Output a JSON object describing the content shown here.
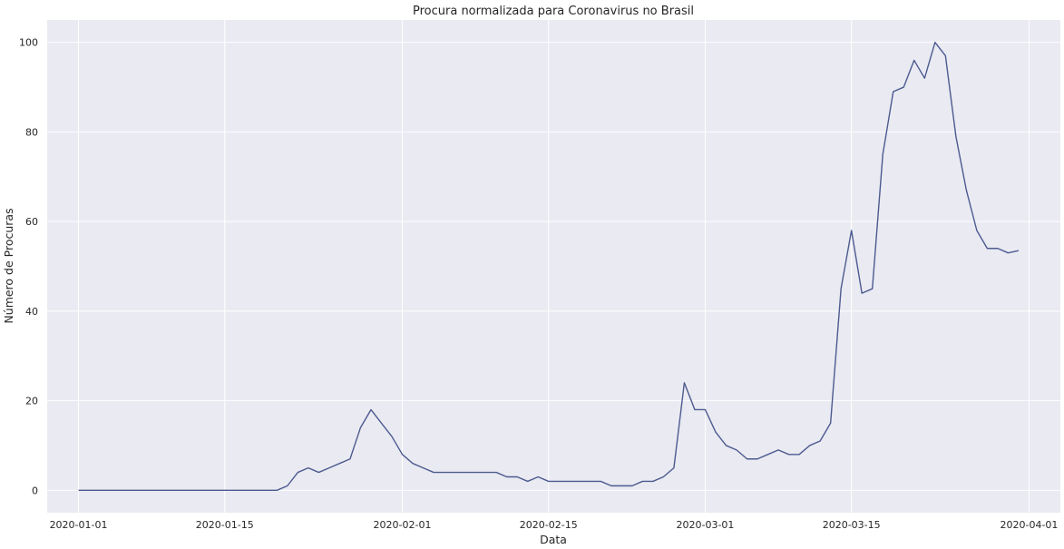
{
  "chart_data": {
    "type": "line",
    "title": "Procura normalizada para Coronavirus no Brasil",
    "xlabel": "Data",
    "ylabel": "Número de Procuras",
    "x_tick_labels": [
      "2020-01-01",
      "2020-01-15",
      "2020-02-01",
      "2020-02-15",
      "2020-03-01",
      "2020-03-15",
      "2020-04-01"
    ],
    "y_tick_labels": [
      "0",
      "20",
      "40",
      "60",
      "80",
      "100"
    ],
    "xlim": [
      "2019-12-29",
      "2020-04-04"
    ],
    "ylim": [
      -5,
      105
    ],
    "grid": true,
    "colors": {
      "background": "#eaeaf2",
      "line": "#4c5a8f",
      "grid": "#ffffff"
    },
    "series": [
      {
        "x": [
          "2020-01-01",
          "2020-01-02",
          "2020-01-03",
          "2020-01-04",
          "2020-01-05",
          "2020-01-06",
          "2020-01-07",
          "2020-01-08",
          "2020-01-09",
          "2020-01-10",
          "2020-01-11",
          "2020-01-12",
          "2020-01-13",
          "2020-01-14",
          "2020-01-15",
          "2020-01-16",
          "2020-01-17",
          "2020-01-18",
          "2020-01-19",
          "2020-01-20",
          "2020-01-21",
          "2020-01-22",
          "2020-01-23",
          "2020-01-24",
          "2020-01-25",
          "2020-01-26",
          "2020-01-27",
          "2020-01-28",
          "2020-01-29",
          "2020-01-30",
          "2020-01-31",
          "2020-02-01",
          "2020-02-02",
          "2020-02-03",
          "2020-02-04",
          "2020-02-05",
          "2020-02-06",
          "2020-02-07",
          "2020-02-08",
          "2020-02-09",
          "2020-02-10",
          "2020-02-11",
          "2020-02-12",
          "2020-02-13",
          "2020-02-14",
          "2020-02-15",
          "2020-02-16",
          "2020-02-17",
          "2020-02-18",
          "2020-02-19",
          "2020-02-20",
          "2020-02-21",
          "2020-02-22",
          "2020-02-23",
          "2020-02-24",
          "2020-02-25",
          "2020-02-26",
          "2020-02-27",
          "2020-02-28",
          "2020-02-29",
          "2020-03-01",
          "2020-03-02",
          "2020-03-03",
          "2020-03-04",
          "2020-03-05",
          "2020-03-06",
          "2020-03-07",
          "2020-03-08",
          "2020-03-09",
          "2020-03-10",
          "2020-03-11",
          "2020-03-12",
          "2020-03-13",
          "2020-03-14",
          "2020-03-15",
          "2020-03-16",
          "2020-03-17",
          "2020-03-18",
          "2020-03-19",
          "2020-03-20",
          "2020-03-21",
          "2020-03-22",
          "2020-03-23",
          "2020-03-24",
          "2020-03-25",
          "2020-03-26",
          "2020-03-27",
          "2020-03-28",
          "2020-03-29",
          "2020-03-30",
          "2020-03-31"
        ],
        "y": [
          0,
          0,
          0,
          0,
          0,
          0,
          0,
          0,
          0,
          0,
          0,
          0,
          0,
          0,
          0,
          0,
          0,
          0,
          0,
          0,
          1,
          4,
          5,
          4,
          5,
          6,
          7,
          14,
          18,
          15,
          12,
          8,
          6,
          5,
          4,
          4,
          4,
          4,
          4,
          4,
          4,
          3,
          3,
          2,
          3,
          2,
          2,
          2,
          2,
          2,
          2,
          1,
          1,
          1,
          2,
          2,
          3,
          5,
          24,
          18,
          18,
          13,
          10,
          9,
          7,
          7,
          8,
          9,
          8,
          8,
          10,
          11,
          15,
          45,
          58,
          44,
          45,
          75,
          89,
          90,
          96,
          92,
          100,
          97,
          79,
          67,
          58,
          54,
          54,
          53,
          53.5
        ]
      }
    ]
  }
}
